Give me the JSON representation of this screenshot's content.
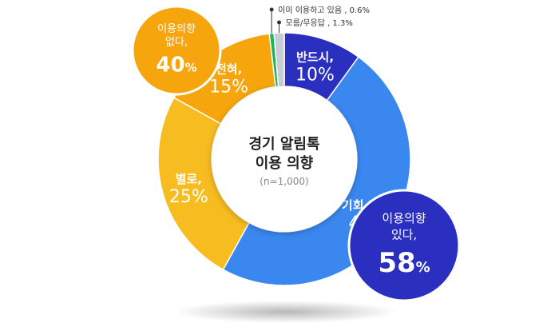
{
  "chart_data": {
    "type": "pie",
    "title": "경기 알림톡\n이용 의향",
    "subtitle": "(n=1,000)",
    "slices": [
      {
        "label": "반드시,",
        "value": 10,
        "value_text": "10%",
        "color": "#2a2fc0"
      },
      {
        "label": "기회 되면,",
        "value": 48,
        "value_text": "48%",
        "color": "#3a87f0"
      },
      {
        "label": "별로,",
        "value": 25,
        "value_text": "25%",
        "color": "#f7bc1f"
      },
      {
        "label": "전혀,",
        "value": 15,
        "value_text": "15%",
        "color": "#f6a50c"
      },
      {
        "label": "이미 이용하고 있음 , 0.6%",
        "value": 0.6,
        "color": "#1fb35a"
      },
      {
        "label": "모름/무응답 , 1.3%",
        "value": 1.3,
        "color": "#c8ccd6"
      }
    ],
    "groups": [
      {
        "line1": "이용의향",
        "line2": "있다,",
        "value_text": "58",
        "unit": "%",
        "color": "#2a2fc0"
      },
      {
        "line1": "이용의향",
        "line2": "없다,",
        "value_text": "40",
        "unit": "%",
        "color": "#f6a50c"
      }
    ]
  }
}
